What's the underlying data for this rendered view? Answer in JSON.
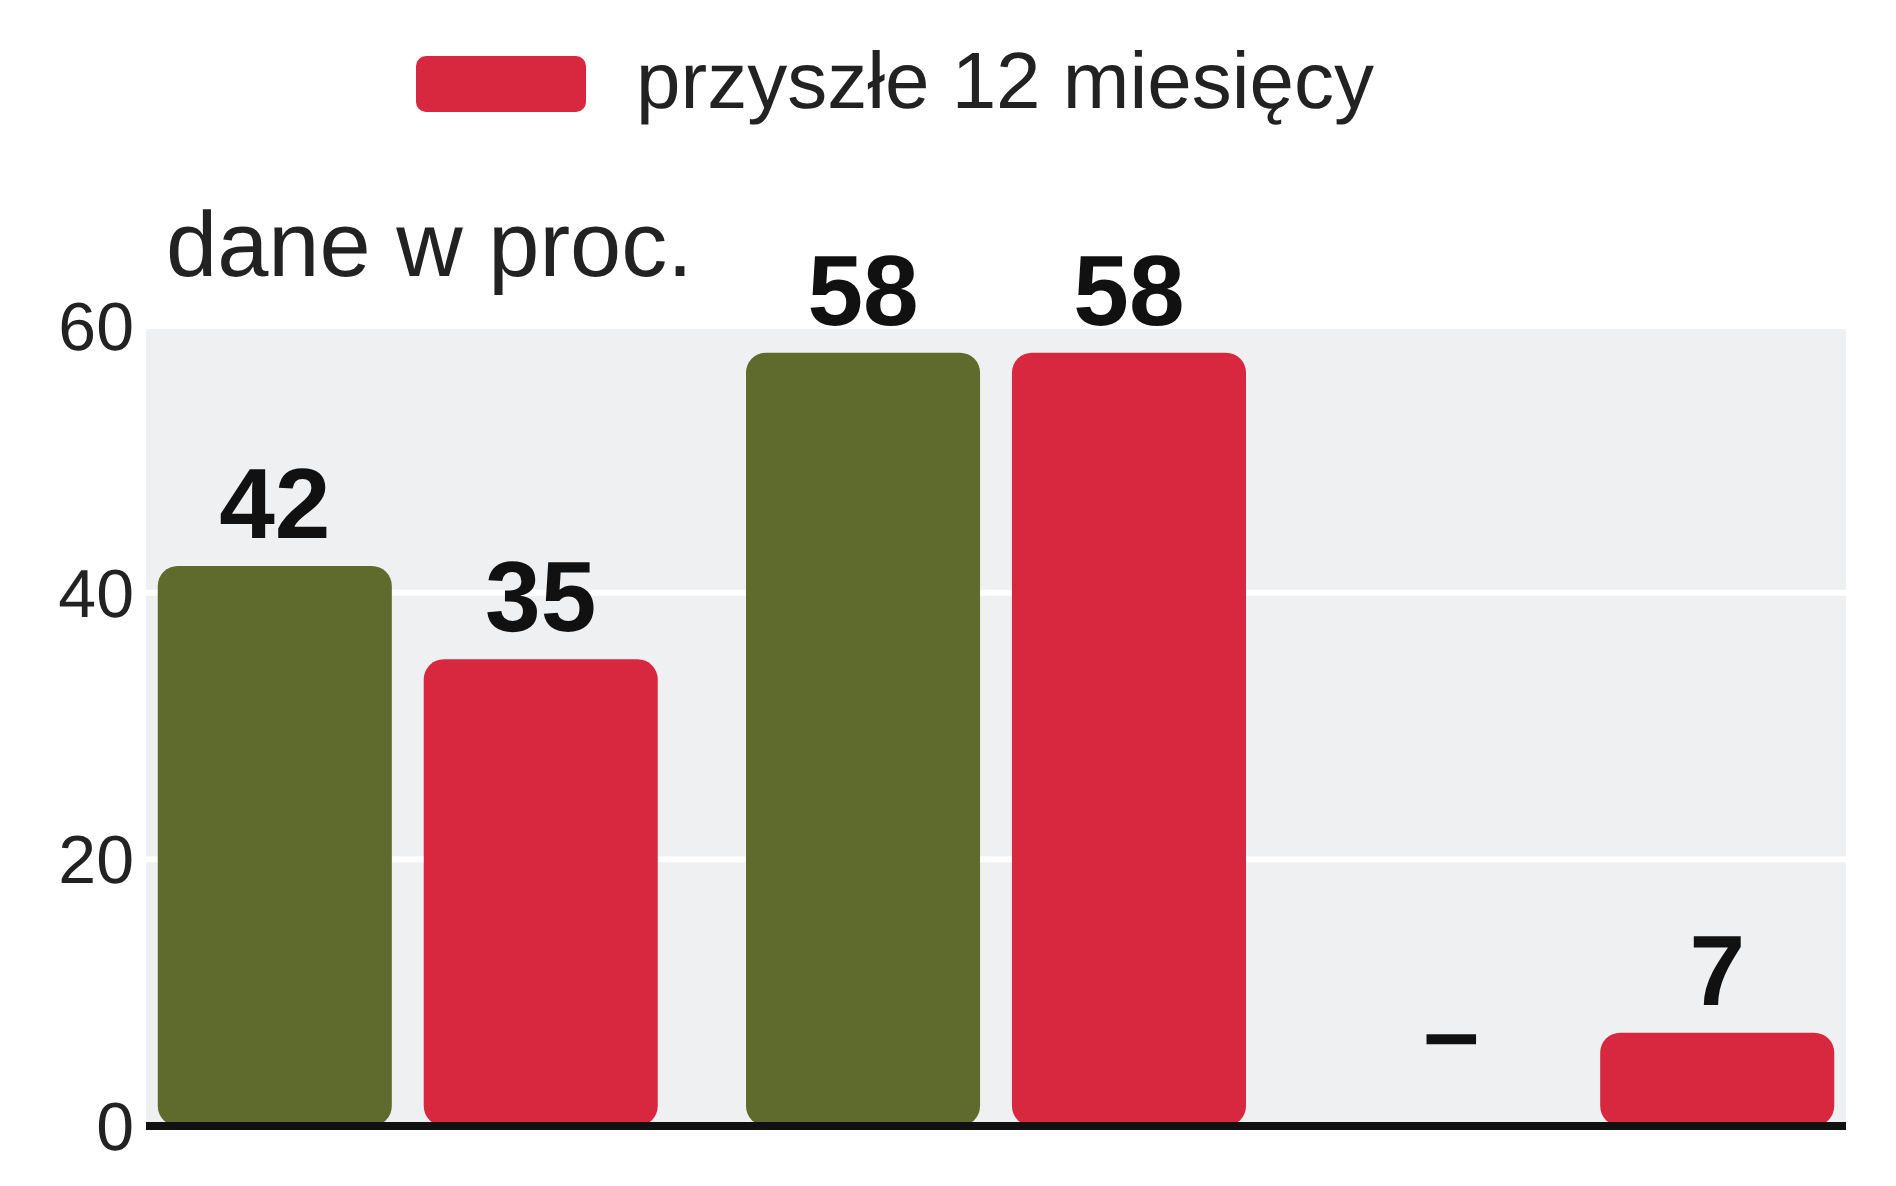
{
  "chart_data": {
    "type": "bar",
    "categories": [
      null,
      null,
      null
    ],
    "series": [
      {
        "color": "#5e6b2c",
        "values": [
          42,
          58,
          null
        ],
        "value_labels": [
          "42",
          "58",
          "–"
        ]
      },
      {
        "name": "przyszłe 12 miesięcy",
        "color": "#d8283f",
        "values": [
          35,
          58,
          7
        ],
        "value_labels": [
          "35",
          "58",
          "7"
        ]
      }
    ],
    "ylim": [
      0,
      60
    ],
    "yticks": [
      0,
      20,
      40,
      60
    ],
    "grid": "y",
    "legend": "top",
    "annotations": [
      "dane w proc."
    ]
  }
}
